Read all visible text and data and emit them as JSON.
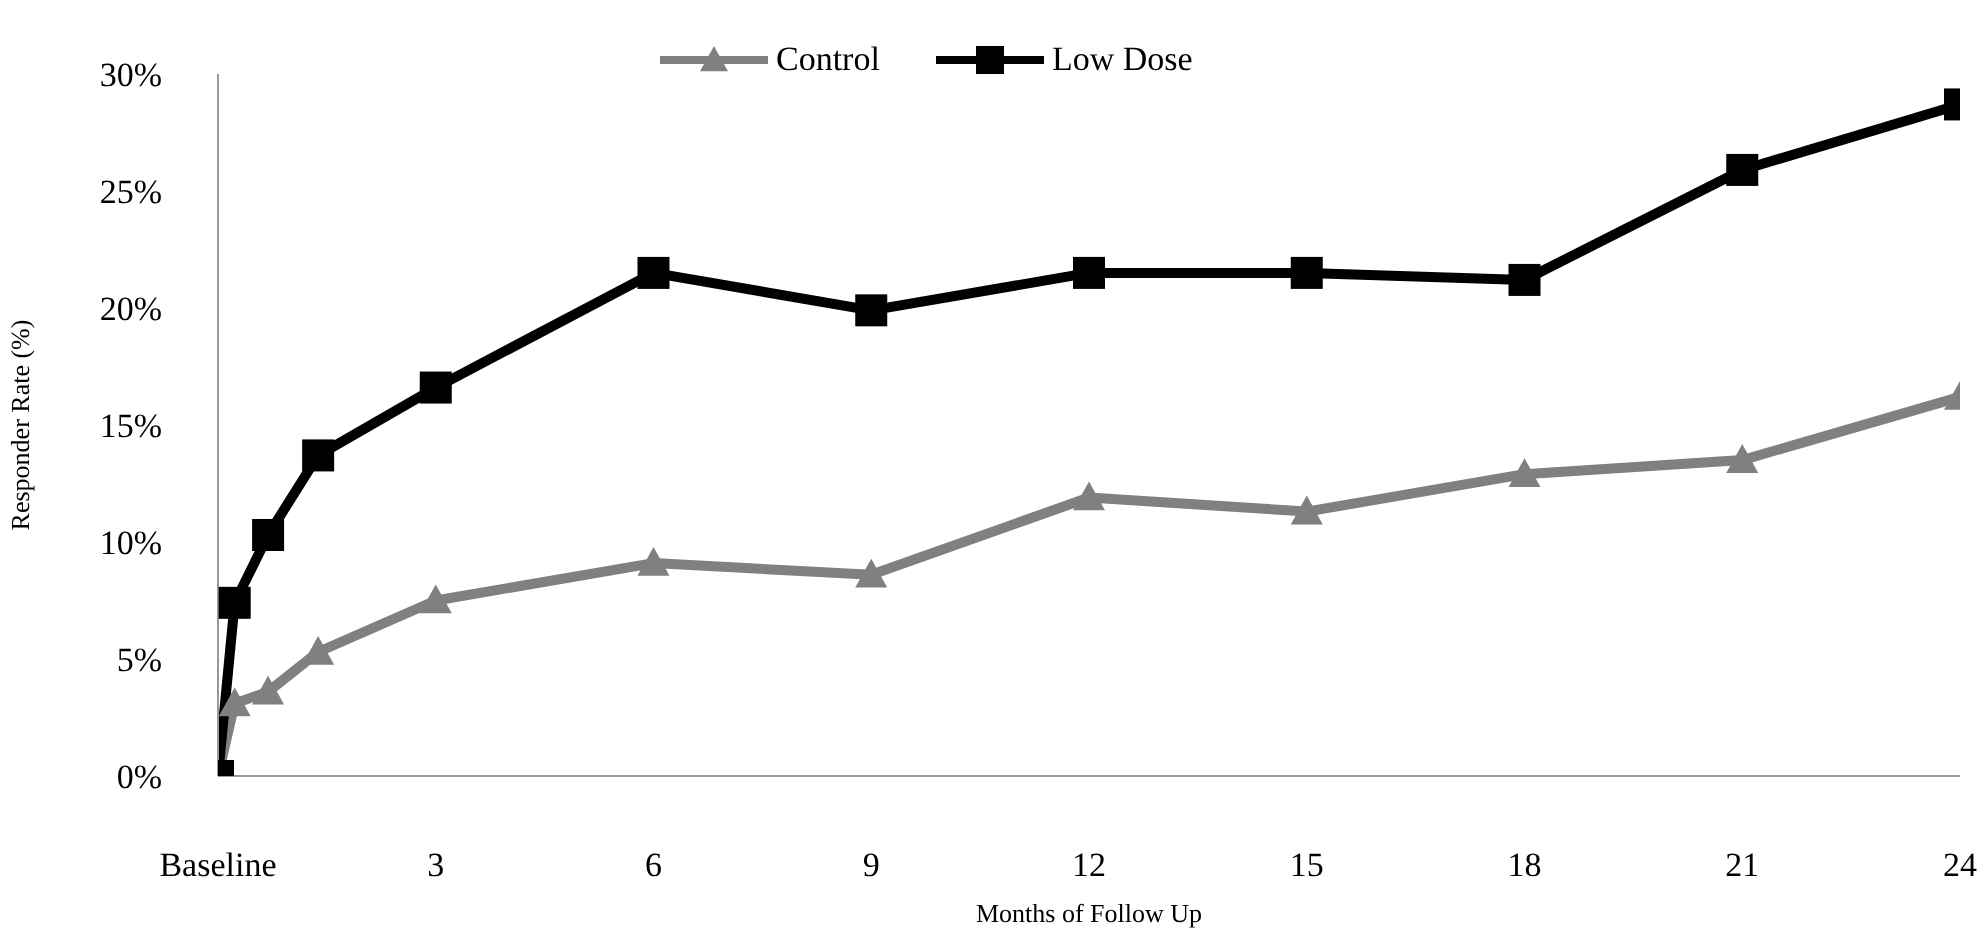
{
  "chart_data": {
    "type": "line",
    "xlabel": "Months of Follow Up",
    "ylabel": "Responder Rate (%)",
    "x": [
      0,
      0.23,
      0.69,
      1.38,
      3,
      6,
      9,
      12,
      15,
      18,
      21,
      24
    ],
    "series": [
      {
        "name": "Control",
        "color": "#808080",
        "marker": "triangle",
        "values": [
          0,
          3.1,
          3.6,
          5.3,
          7.5,
          9.1,
          8.6,
          11.9,
          11.3,
          12.9,
          13.5,
          16.2
        ]
      },
      {
        "name": "Low Dose",
        "color": "#000000",
        "marker": "square",
        "values": [
          0,
          7.4,
          10.3,
          13.7,
          16.6,
          21.5,
          19.9,
          21.5,
          21.5,
          21.2,
          25.9,
          28.7
        ]
      }
    ],
    "xlim": [
      0,
      24
    ],
    "xticks": [
      {
        "value": 0,
        "label": "Baseline"
      },
      3,
      6,
      9,
      12,
      15,
      18,
      21,
      24
    ],
    "ylim": [
      0,
      30
    ],
    "yticks": [
      {
        "value": 0,
        "label": "0%"
      },
      {
        "value": 5,
        "label": "5%"
      },
      {
        "value": 10,
        "label": "10%"
      },
      {
        "value": 15,
        "label": "15%"
      },
      {
        "value": 20,
        "label": "20%"
      },
      {
        "value": 25,
        "label": "25%"
      },
      {
        "value": 30,
        "label": "30%"
      }
    ],
    "grid": false,
    "legend": "top",
    "line_style": "solid"
  }
}
